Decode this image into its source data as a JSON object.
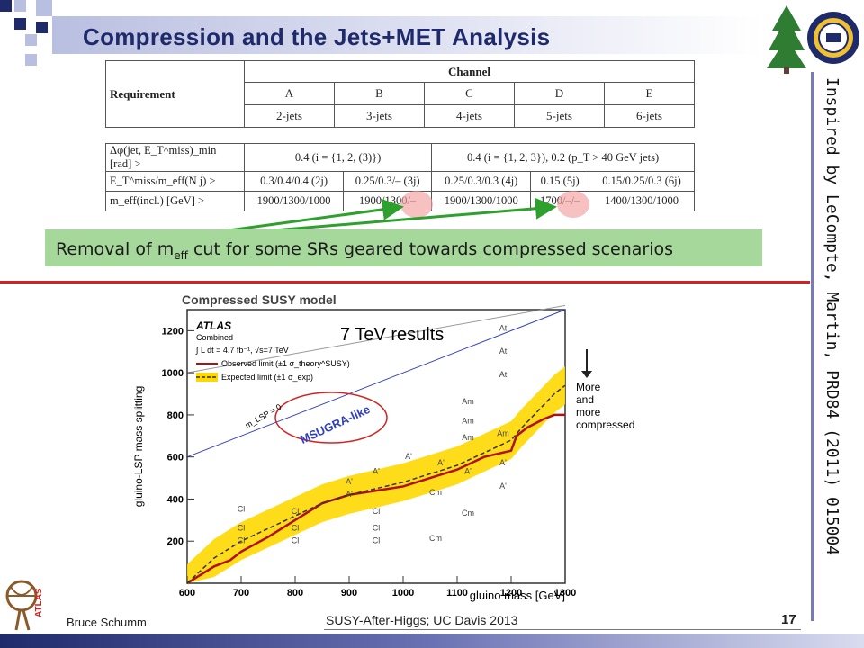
{
  "slide": {
    "title": "Compression and the Jets+MET Analysis",
    "side_note": "Inspired by LeCompte, Martin, PRD84 (2011) 015004",
    "callout": {
      "prefix": "Removal of m",
      "sub": "eff",
      "suffix": " cut for some SRs geared towards compressed scenarios"
    },
    "footer_left": "Bruce Schumm",
    "footer_center": "SUSY-After-Higgs; UC Davis 2013",
    "page_number": "17"
  },
  "table": {
    "header_requirement": "Requirement",
    "header_channel": "Channel",
    "channels": [
      "A",
      "B",
      "C",
      "D",
      "E"
    ],
    "jets": [
      "2-jets",
      "3-jets",
      "4-jets",
      "5-jets",
      "6-jets"
    ],
    "rows": [
      {
        "label": "Δφ(jet, E_T^miss)_min [rad] >",
        "cells": [
          "0.4 (i = {1, 2, (3)})",
          "0.4 (i = {1, 2, 3}), 0.2 (p_T > 40 GeV jets)"
        ]
      },
      {
        "label": "E_T^miss/m_eff(N j) >",
        "cells": [
          "0.3/0.4/0.4 (2j)",
          "0.25/0.3/– (3j)",
          "0.25/0.3/0.3 (4j)",
          "0.15 (5j)",
          "0.15/0.25/0.3 (6j)"
        ]
      },
      {
        "label": "m_eff(incl.) [GeV] >",
        "cells": [
          "1900/1300/1000",
          "1900/1300/–",
          "1900/1300/1000",
          "1700/–/–",
          "1400/1300/1000"
        ]
      }
    ]
  },
  "chart": {
    "header": "Compressed SUSY model",
    "atlas": "ATLAS",
    "combined": "Combined",
    "lumi": "∫ L dt = 4.7 fb⁻¹, √s=7 TeV",
    "observed": "Observed limit (±1 σ_theory^SUSY)",
    "expected": "Expected limit (±1 σ_exp)",
    "big_label": "7 TeV results",
    "msugra": "MSUGRA-like",
    "mlsp": "m_LSP = 0",
    "arrow_label": [
      "More",
      "and",
      "more",
      "compressed"
    ]
  },
  "chart_data": {
    "type": "line",
    "xlabel": "gluino mass [GeV]",
    "ylabel": "gluino-LSP mass splitting",
    "xlim": [
      600,
      1300
    ],
    "ylim": [
      0,
      1300
    ],
    "x_ticks": [
      600,
      700,
      800,
      900,
      1000,
      1100,
      1200,
      1300
    ],
    "y_ticks": [
      200,
      400,
      600,
      800,
      1000,
      1200
    ],
    "series": [
      {
        "name": "Observed limit",
        "x": [
          600,
          650,
          680,
          700,
          750,
          800,
          850,
          900,
          950,
          1000,
          1050,
          1100,
          1150,
          1200,
          1210,
          1230,
          1260,
          1280,
          1300
        ],
        "values": [
          0,
          80,
          110,
          150,
          220,
          300,
          380,
          420,
          440,
          460,
          500,
          540,
          600,
          630,
          700,
          740,
          780,
          800,
          800
        ]
      },
      {
        "name": "Expected limit",
        "x": [
          600,
          650,
          700,
          750,
          800,
          850,
          900,
          950,
          1000,
          1050,
          1100,
          1150,
          1200,
          1220,
          1250,
          1280,
          1300
        ],
        "values": [
          0,
          120,
          200,
          260,
          320,
          380,
          420,
          450,
          480,
          520,
          560,
          620,
          680,
          740,
          820,
          900,
          940
        ]
      },
      {
        "name": "m_LSP = 0",
        "x": [
          600,
          1300
        ],
        "values": [
          600,
          1300
        ]
      }
    ],
    "markers": [
      {
        "label": "At",
        "x": 1185,
        "y": 1200
      },
      {
        "label": "At",
        "x": 1185,
        "y": 1090
      },
      {
        "label": "At",
        "x": 1185,
        "y": 980
      },
      {
        "label": "Am",
        "x": 1120,
        "y": 850
      },
      {
        "label": "Am",
        "x": 1120,
        "y": 760
      },
      {
        "label": "Am",
        "x": 1120,
        "y": 680
      },
      {
        "label": "Am",
        "x": 1185,
        "y": 700
      },
      {
        "label": "A'",
        "x": 1010,
        "y": 590
      },
      {
        "label": "A'",
        "x": 1070,
        "y": 560
      },
      {
        "label": "A'",
        "x": 1120,
        "y": 520
      },
      {
        "label": "A'",
        "x": 1185,
        "y": 560
      },
      {
        "label": "A'",
        "x": 950,
        "y": 520
      },
      {
        "label": "A'",
        "x": 1185,
        "y": 450
      },
      {
        "label": "A'",
        "x": 900,
        "y": 470
      },
      {
        "label": "A'",
        "x": 900,
        "y": 410
      },
      {
        "label": "Cm",
        "x": 1060,
        "y": 420
      },
      {
        "label": "Cm",
        "x": 1120,
        "y": 320
      },
      {
        "label": "Cm",
        "x": 1060,
        "y": 200
      },
      {
        "label": "Cl",
        "x": 700,
        "y": 340
      },
      {
        "label": "Cl",
        "x": 700,
        "y": 250
      },
      {
        "label": "Cl",
        "x": 700,
        "y": 190
      },
      {
        "label": "Cl",
        "x": 800,
        "y": 330
      },
      {
        "label": "Cl",
        "x": 800,
        "y": 250
      },
      {
        "label": "Cl",
        "x": 800,
        "y": 190
      },
      {
        "label": "Cl",
        "x": 950,
        "y": 330
      },
      {
        "label": "Cl",
        "x": 950,
        "y": 250
      },
      {
        "label": "Cl",
        "x": 950,
        "y": 190
      }
    ]
  },
  "colors": {
    "title": "#1f2a6b",
    "callout_bg": "#a6d79b",
    "divider": "#d72020",
    "band": "#ffd800",
    "observed": "#b01010",
    "mlsp_line": "#3040c0"
  }
}
